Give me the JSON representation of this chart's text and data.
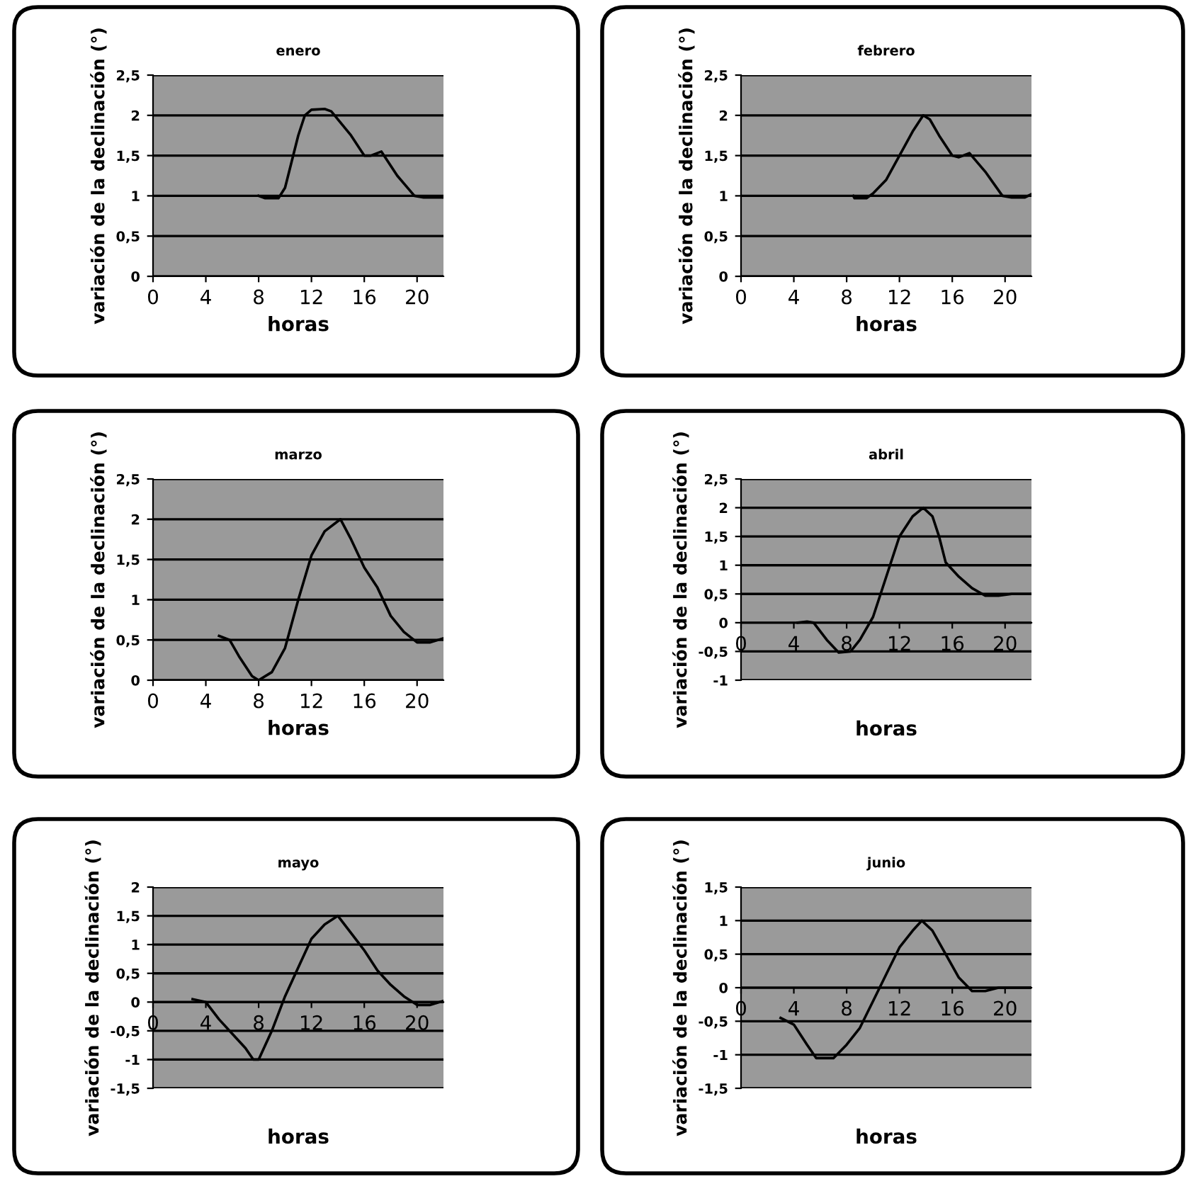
{
  "chart_data": [
    {
      "type": "line",
      "title": "enero",
      "xlabel": "horas",
      "ylabel": "variación de la declinación (°)",
      "xlim": [
        0,
        22
      ],
      "xticks": [
        0,
        4,
        8,
        12,
        16,
        20
      ],
      "ylim": [
        0,
        2.5
      ],
      "yticks": [
        0,
        {
          "value": 0.5,
          "label": "0,5"
        },
        1,
        {
          "value": 1.5,
          "label": "1,5"
        },
        2,
        {
          "value": 2.5,
          "label": "2,5"
        }
      ],
      "grid": "y",
      "series": [
        {
          "color": "#000000",
          "x": [
            8,
            8.5,
            9.5,
            10,
            11,
            11.5,
            12,
            13,
            13.5,
            15,
            16,
            16.5,
            17.3,
            18.5,
            19.8,
            20.5,
            22
          ],
          "values": [
            1.0,
            0.97,
            0.97,
            1.1,
            1.75,
            2.0,
            2.07,
            2.08,
            2.05,
            1.75,
            1.5,
            1.5,
            1.55,
            1.25,
            1.0,
            0.98,
            0.98
          ]
        }
      ]
    },
    {
      "type": "line",
      "title": "febrero",
      "xlabel": "horas",
      "ylabel": "variación de la declinación (°)",
      "xlim": [
        0,
        22
      ],
      "xticks": [
        0,
        4,
        8,
        12,
        16,
        20
      ],
      "ylim": [
        0,
        2.5
      ],
      "yticks": [
        0,
        {
          "value": 0.5,
          "label": "0,5"
        },
        1,
        {
          "value": 1.5,
          "label": "1,5"
        },
        2,
        {
          "value": 2.5,
          "label": "2,5"
        }
      ],
      "grid": "y",
      "series": [
        {
          "color": "#000000",
          "x": [
            8.5,
            8.6,
            9.5,
            10,
            11,
            12,
            13,
            13.8,
            14.3,
            15,
            16,
            16.5,
            17.3,
            18.5,
            19.8,
            20.5,
            21.5,
            22
          ],
          "values": [
            1.0,
            0.97,
            0.97,
            1.03,
            1.2,
            1.5,
            1.8,
            2.0,
            1.95,
            1.75,
            1.5,
            1.48,
            1.53,
            1.3,
            1.0,
            0.98,
            0.98,
            1.02
          ]
        }
      ]
    },
    {
      "type": "line",
      "title": "marzo",
      "xlabel": "horas",
      "ylabel": "variación de la declinación (°)",
      "xlim": [
        0,
        22
      ],
      "xticks": [
        0,
        4,
        8,
        12,
        16,
        20
      ],
      "ylim": [
        0,
        2.5
      ],
      "yticks": [
        0,
        {
          "value": 0.5,
          "label": "0,5"
        },
        1,
        {
          "value": 1.5,
          "label": "1,5"
        },
        2,
        {
          "value": 2.5,
          "label": "2,5"
        }
      ],
      "grid": "y",
      "series": [
        {
          "color": "#000000",
          "x": [
            5,
            5.8,
            6.5,
            7.5,
            8,
            9,
            10,
            11,
            12,
            13,
            14.2,
            15,
            16,
            17,
            18,
            19,
            20,
            21,
            22
          ],
          "values": [
            0.55,
            0.5,
            0.3,
            0.05,
            0.0,
            0.1,
            0.4,
            1.0,
            1.55,
            1.85,
            2.0,
            1.75,
            1.4,
            1.15,
            0.8,
            0.6,
            0.47,
            0.47,
            0.52
          ]
        }
      ]
    },
    {
      "type": "line",
      "title": "abril",
      "xlabel": "horas",
      "ylabel": "variación de la declinación (°)",
      "xlim": [
        0,
        22
      ],
      "xticks": [
        0,
        4,
        8,
        12,
        16,
        20
      ],
      "ylim": [
        -1,
        2.5
      ],
      "yticks": [
        -1,
        {
          "value": -0.5,
          "label": "-0,5"
        },
        0,
        {
          "value": 0.5,
          "label": "0,5"
        },
        1,
        {
          "value": 1.5,
          "label": "1,5"
        },
        2,
        {
          "value": 2.5,
          "label": "2,5"
        }
      ],
      "grid": "y",
      "series": [
        {
          "color": "#000000",
          "x": [
            4.3,
            5,
            5.5,
            6.5,
            7.4,
            8.3,
            9,
            10,
            11,
            12,
            13,
            13.8,
            14.5,
            15,
            15.5,
            16.5,
            17.5,
            18.5,
            19.5,
            20.5,
            22
          ],
          "values": [
            0.0,
            0.02,
            0.0,
            -0.3,
            -0.52,
            -0.5,
            -0.3,
            0.1,
            0.8,
            1.5,
            1.85,
            2.0,
            1.85,
            1.5,
            1.05,
            0.8,
            0.6,
            0.47,
            0.47,
            0.5,
            0.5
          ]
        }
      ]
    },
    {
      "type": "line",
      "title": "mayo",
      "xlabel": "horas",
      "ylabel": "variación de la declinación (°)",
      "xlim": [
        0,
        22
      ],
      "xticks": [
        0,
        4,
        8,
        12,
        16,
        20
      ],
      "ylim": [
        -1.5,
        2
      ],
      "yticks": [
        {
          "value": -1.5,
          "label": "-1,5"
        },
        -1,
        {
          "value": -0.5,
          "label": "-0,5"
        },
        0,
        {
          "value": 0.5,
          "label": "0,5"
        },
        1,
        {
          "value": 1.5,
          "label": "1,5"
        },
        2
      ],
      "grid": "y",
      "series": [
        {
          "color": "#000000",
          "x": [
            3,
            4,
            5,
            6,
            7,
            7.6,
            8,
            9,
            10,
            11,
            12,
            13,
            14,
            15,
            16,
            17,
            18,
            19,
            20,
            21,
            22
          ],
          "values": [
            0.05,
            0.0,
            -0.3,
            -0.55,
            -0.8,
            -1.0,
            -1.0,
            -0.5,
            0.1,
            0.6,
            1.1,
            1.35,
            1.5,
            1.2,
            0.9,
            0.55,
            0.3,
            0.1,
            -0.05,
            -0.05,
            0.02
          ]
        }
      ]
    },
    {
      "type": "line",
      "title": "junio",
      "xlabel": "horas",
      "ylabel": "variación de la declinación (°)",
      "xlim": [
        0,
        22
      ],
      "xticks": [
        0,
        4,
        8,
        12,
        16,
        20
      ],
      "ylim": [
        -1.5,
        1.5
      ],
      "yticks": [
        {
          "value": -1.5,
          "label": "-1,5"
        },
        -1,
        {
          "value": -0.5,
          "label": "-0,5"
        },
        0,
        {
          "value": 0.5,
          "label": "0,5"
        },
        1,
        {
          "value": 1.5,
          "label": "1,5"
        }
      ],
      "grid": "y",
      "series": [
        {
          "color": "#000000",
          "x": [
            3,
            4,
            5,
            5.7,
            7,
            8,
            9,
            10,
            11,
            12,
            13,
            13.7,
            14.5,
            15.5,
            16.5,
            17.5,
            18.5,
            19.5,
            22
          ],
          "values": [
            -0.45,
            -0.55,
            -0.85,
            -1.05,
            -1.05,
            -0.85,
            -0.6,
            -0.2,
            0.2,
            0.6,
            0.85,
            1.0,
            0.85,
            0.5,
            0.15,
            -0.05,
            -0.05,
            0.0,
            0.0
          ]
        }
      ]
    }
  ]
}
